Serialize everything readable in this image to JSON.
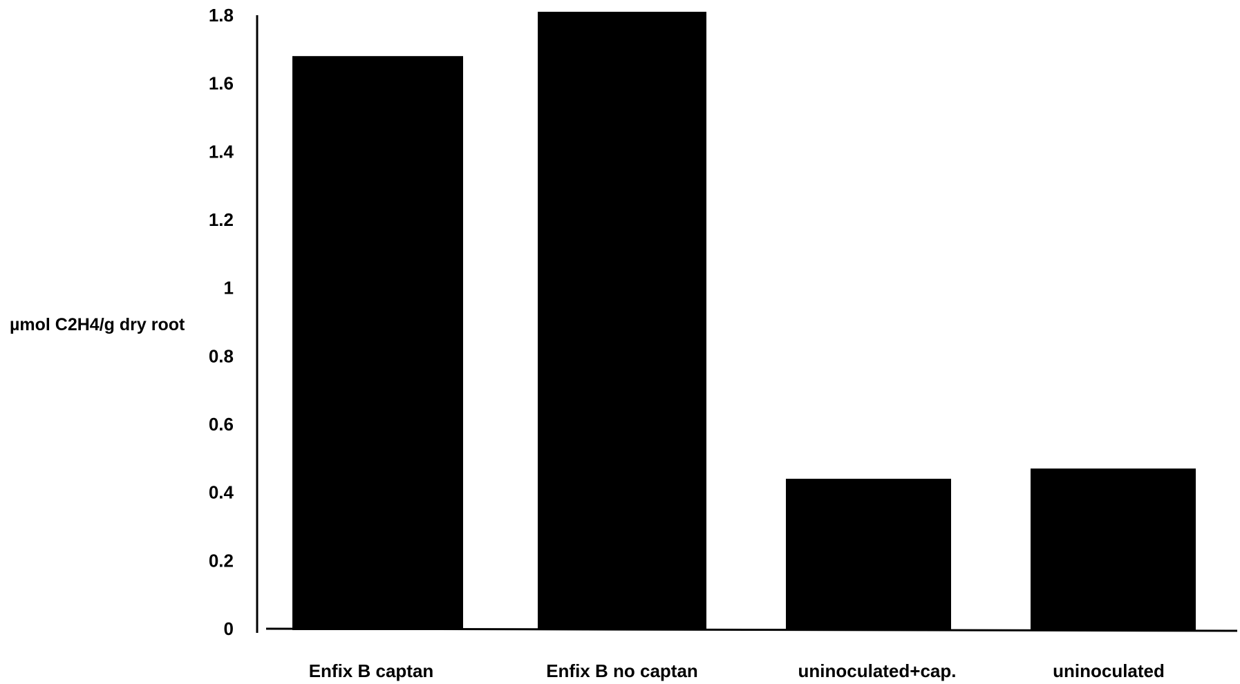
{
  "chart_data": {
    "type": "bar",
    "categories": [
      "Enfix B captan",
      "Enfix B no captan",
      "uninoculated+cap.",
      "uninoculated"
    ],
    "values": [
      1.68,
      1.81,
      0.44,
      0.47
    ],
    "ylabel": "µmol C2H4/g dry root",
    "xlabel": "",
    "ylim": [
      0,
      1.8
    ],
    "yticks": [
      "0",
      "0.2",
      "0.4",
      "0.6",
      "0.8",
      "1",
      "1.2",
      "1.4",
      "1.6",
      "1.8"
    ],
    "grid": false,
    "bar_color": "#000000"
  }
}
